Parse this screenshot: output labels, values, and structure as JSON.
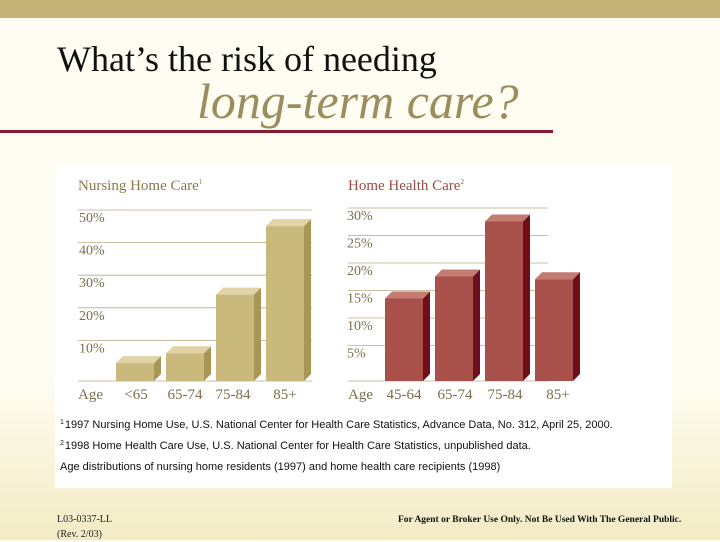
{
  "title": {
    "line1": "What’s the risk of needing",
    "line2": "long-term care?"
  },
  "colors": {
    "nursing_front": "#c9b97c",
    "nursing_side": "#a89654",
    "nursing_top": "#e0d3a6",
    "home_front": "#a8504a",
    "home_side": "#6e0f1a",
    "home_top": "#c47c72",
    "heading_nursing": "#8a7a48",
    "heading_home": "#9a4a44",
    "axis_text": "#7a6f4c",
    "underline": "#8b1830"
  },
  "chart_data": [
    {
      "type": "bar",
      "title": "Nursing Home Care",
      "title_sup": "1",
      "xlabel": "Age",
      "categories": [
        "<65",
        "65-74",
        "75-84",
        "85+"
      ],
      "values": [
        5.5,
        8.5,
        26.5,
        47.5
      ],
      "yticks": [
        "10%",
        "20%",
        "30%",
        "40%",
        "50%"
      ],
      "ytick_values": [
        10,
        20,
        30,
        40,
        50
      ],
      "ylim": [
        0,
        50
      ],
      "grid": true
    },
    {
      "type": "bar",
      "title": "Home Health Care",
      "title_sup": "2",
      "xlabel": "Age",
      "categories": [
        "45-64",
        "65-74",
        "75-84",
        "85+"
      ],
      "values": [
        15,
        19,
        29,
        18.5
      ],
      "yticks": [
        "5%",
        "10%",
        "15%",
        "20%",
        "25%",
        "30%"
      ],
      "ytick_values": [
        5,
        10,
        15,
        20,
        25,
        30
      ],
      "ylim": [
        0,
        30
      ],
      "grid": true
    }
  ],
  "footnotes": [
    {
      "sup": "1",
      "text": "1997 Nursing Home Use, U.S. National Center for Health Care Statistics, Advance Data, No. 312, April 25, 2000."
    },
    {
      "sup": "2",
      "text": "1998 Home Health Care Use, U.S. National Center for Health Care Statistics, unpublished data."
    },
    {
      "sup": "",
      "text": "Age distributions of nursing home residents (1997) and home health care recipients (1998)"
    }
  ],
  "footer": {
    "code_line1": "L03-0337-LL",
    "code_line2": "(Rev. 2/03)",
    "disclaimer": "For Agent or Broker Use Only. Not Be Used With The General Public."
  }
}
